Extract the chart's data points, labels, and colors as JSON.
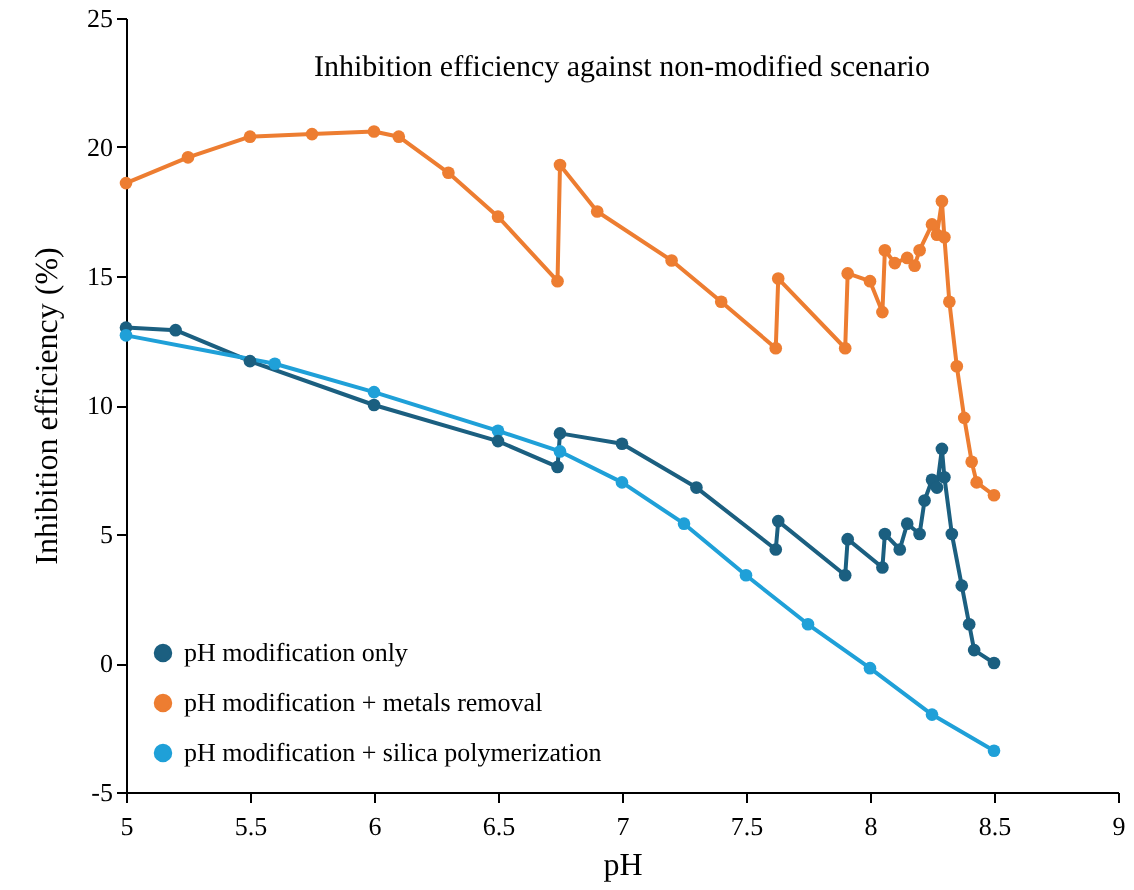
{
  "chart_data": {
    "type": "line",
    "title": "Inhibition efficiency against non-modified scenario",
    "xlabel": "pH",
    "ylabel": "Inhibition efficiency (%)",
    "xlim": [
      5,
      9
    ],
    "xticks": [
      5,
      5.5,
      6,
      6.5,
      7,
      7.5,
      8,
      8.5,
      9
    ],
    "ylim": [
      -5,
      25
    ],
    "yticks": [
      -5,
      0,
      5,
      10,
      15,
      20,
      25
    ],
    "grid": false,
    "legend": "bottom left",
    "marker": "circle",
    "line_style": "solid",
    "series": [
      {
        "name": "pH modification only",
        "color": "#1b5f80",
        "x": [
          5,
          5.2,
          5.5,
          6,
          6.5,
          6.74,
          6.75,
          7.0,
          7.3,
          7.62,
          7.63,
          7.9,
          7.91,
          8.05,
          8.06,
          8.12,
          8.15,
          8.2,
          8.22,
          8.25,
          8.27,
          8.29,
          8.3,
          8.33,
          8.37,
          8.4,
          8.42,
          8.5
        ],
        "values": [
          13.0,
          12.9,
          11.7,
          10.0,
          8.6,
          7.6,
          8.9,
          8.5,
          6.8,
          4.4,
          5.5,
          3.4,
          4.8,
          3.7,
          5.0,
          4.4,
          5.4,
          5.0,
          6.3,
          7.1,
          6.8,
          8.3,
          7.2,
          5.0,
          3.0,
          1.5,
          0.5,
          0.0
        ]
      },
      {
        "name": "pH modification + metals removal",
        "color": "#ed7d31",
        "x": [
          5,
          5.25,
          5.5,
          5.75,
          6,
          6.1,
          6.3,
          6.5,
          6.74,
          6.75,
          6.9,
          7.2,
          7.4,
          7.62,
          7.63,
          7.9,
          7.91,
          8.0,
          8.05,
          8.06,
          8.1,
          8.15,
          8.18,
          8.2,
          8.25,
          8.27,
          8.29,
          8.3,
          8.32,
          8.35,
          8.38,
          8.41,
          8.43,
          8.5
        ],
        "values": [
          18.6,
          19.6,
          20.4,
          20.5,
          20.6,
          20.4,
          19.0,
          17.3,
          14.8,
          19.3,
          17.5,
          15.6,
          14.0,
          12.2,
          14.9,
          12.2,
          15.1,
          14.8,
          13.6,
          16.0,
          15.5,
          15.7,
          15.4,
          16.0,
          17.0,
          16.6,
          17.9,
          16.5,
          14.0,
          11.5,
          9.5,
          7.8,
          7.0,
          6.5
        ]
      },
      {
        "name": "pH modification + silica polymerization",
        "color": "#1fa0d8",
        "x": [
          5,
          5.6,
          6,
          6.5,
          6.75,
          7.0,
          7.25,
          7.5,
          7.75,
          8.0,
          8.25,
          8.5
        ],
        "values": [
          12.7,
          11.6,
          10.5,
          9.0,
          8.2,
          7.0,
          5.4,
          3.4,
          1.5,
          -0.2,
          -2.0,
          -3.4
        ]
      }
    ]
  }
}
